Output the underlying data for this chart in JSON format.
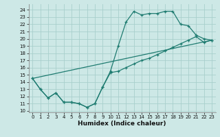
{
  "xlabel": "Humidex (Indice chaleur)",
  "bg_color": "#cde8e6",
  "grid_color": "#a8cfcc",
  "line_color": "#1e7b70",
  "xlim": [
    -0.5,
    23.5
  ],
  "ylim": [
    9.8,
    24.8
  ],
  "xticks": [
    0,
    1,
    2,
    3,
    4,
    5,
    6,
    7,
    8,
    9,
    10,
    11,
    12,
    13,
    14,
    15,
    16,
    17,
    18,
    19,
    20,
    21,
    22,
    23
  ],
  "yticks": [
    10,
    11,
    12,
    13,
    14,
    15,
    16,
    17,
    18,
    19,
    20,
    21,
    22,
    23,
    24
  ],
  "curve1_x": [
    0,
    1,
    2,
    3,
    4,
    5,
    6,
    7,
    8,
    9,
    10,
    11,
    12,
    13,
    14,
    15,
    16,
    17,
    18,
    19,
    20,
    21,
    22,
    23
  ],
  "curve1_y": [
    14.5,
    13.0,
    11.8,
    12.5,
    11.2,
    11.2,
    11.0,
    10.5,
    11.0,
    13.3,
    15.5,
    19.0,
    22.3,
    23.8,
    23.3,
    23.5,
    23.5,
    23.8,
    23.8,
    22.0,
    21.8,
    20.5,
    20.0,
    19.8
  ],
  "curve2_x": [
    0,
    1,
    2,
    3,
    4,
    5,
    6,
    7,
    8,
    9,
    10,
    11,
    12,
    13,
    14,
    15,
    16,
    17,
    18,
    19,
    20,
    21,
    22,
    23
  ],
  "curve2_y": [
    14.5,
    13.0,
    11.8,
    12.5,
    11.2,
    11.2,
    11.0,
    10.5,
    11.0,
    13.3,
    15.3,
    15.5,
    16.0,
    16.5,
    17.0,
    17.3,
    17.8,
    18.3,
    18.8,
    19.3,
    19.8,
    20.3,
    19.5,
    19.8
  ],
  "curve3_x": [
    0,
    23
  ],
  "curve3_y": [
    14.5,
    19.8
  ]
}
